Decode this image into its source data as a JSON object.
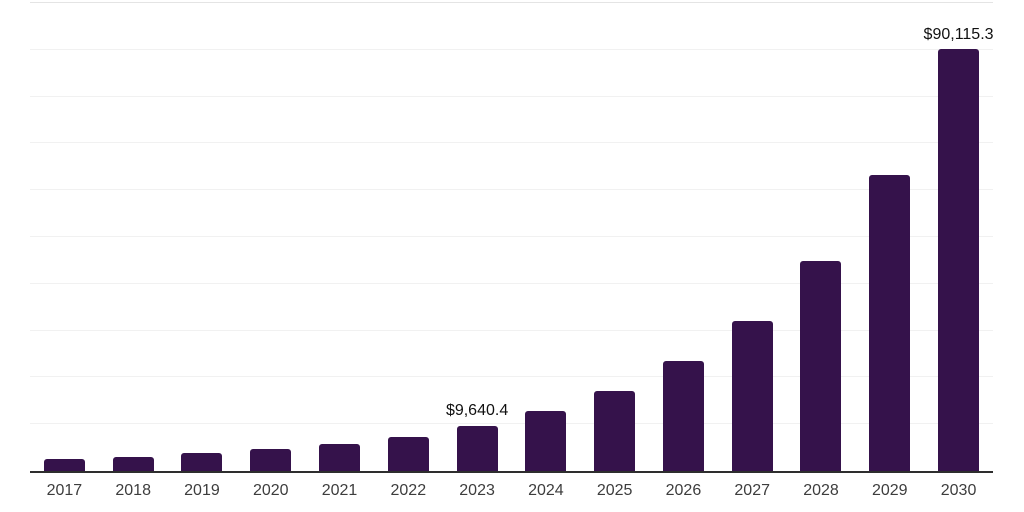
{
  "chart_data": {
    "type": "bar",
    "title": "",
    "xlabel": "",
    "ylabel": "",
    "categories": [
      "2017",
      "2018",
      "2019",
      "2020",
      "2021",
      "2022",
      "2023",
      "2024",
      "2025",
      "2026",
      "2027",
      "2028",
      "2029",
      "2030"
    ],
    "values": [
      2600,
      3100,
      3900,
      4700,
      5700,
      7300,
      9640.4,
      12800,
      17200,
      23500,
      32000,
      44900,
      63200,
      90115.3
    ],
    "data_labels": [
      {
        "category": "2023",
        "text": "$9,640.4"
      },
      {
        "category": "2030",
        "text": "$90,115.3"
      }
    ],
    "ylim": [
      0,
      100000
    ],
    "gridline_step": 10000,
    "grid": true,
    "legend": false,
    "colors": {
      "bar": "#35124B",
      "axis_line": "#2E2E2E",
      "gridline": "#F1F1F1",
      "top_gridline": "#E4E4E4",
      "data_label_text": "#111111",
      "tick_text": "#3D3D3D",
      "background": "#FFFFFF"
    }
  }
}
